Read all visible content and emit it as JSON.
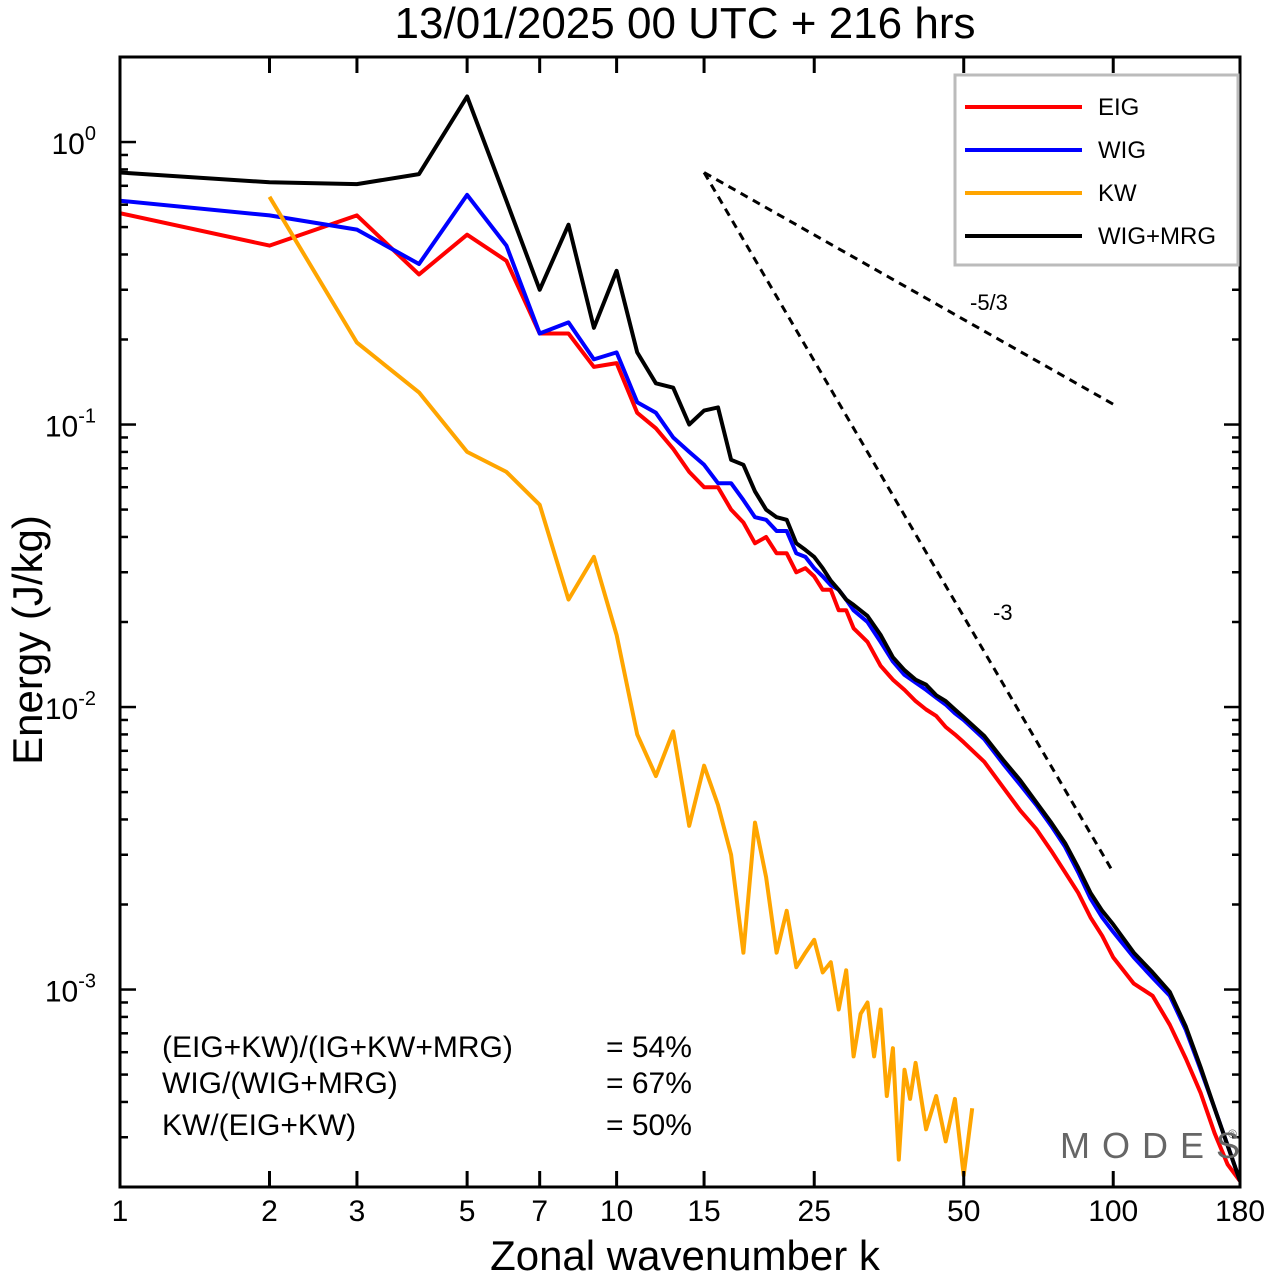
{
  "chart_data": {
    "type": "line",
    "title": "13/01/2025  00 UTC  + 216 hrs",
    "xlabel": "Zonal wavenumber k",
    "ylabel": "Energy (J/kg)",
    "x_scale": "log",
    "y_scale": "log",
    "xlim": [
      1,
      180
    ],
    "ylim": [
      0.0002,
      2.0
    ],
    "x_ticks": [
      1,
      2,
      3,
      5,
      7,
      10,
      15,
      25,
      50,
      100,
      180
    ],
    "x_tick_labels": [
      "1",
      "2",
      "3",
      "5",
      "7",
      "10",
      "15",
      "25",
      "50",
      "100",
      "180"
    ],
    "y_ticks": [
      0.001,
      0.01,
      0.1,
      1
    ],
    "y_tick_labels": [
      {
        "base": "10",
        "exp": "-3"
      },
      {
        "base": "10",
        "exp": "-2"
      },
      {
        "base": "10",
        "exp": "-1"
      },
      {
        "base": "10",
        "exp": "0"
      }
    ],
    "legend_position": "top-right",
    "grid": false,
    "series": [
      {
        "name": "EIG",
        "color": "#ff0000",
        "x": [
          1,
          2,
          3,
          4,
          5,
          6,
          7,
          8,
          9,
          10,
          11,
          12,
          13,
          14,
          15,
          16,
          17,
          18,
          19,
          20,
          21,
          22,
          23,
          24,
          25,
          26,
          27,
          28,
          29,
          30,
          32,
          34,
          36,
          38,
          40,
          42,
          44,
          46,
          48,
          50,
          55,
          60,
          65,
          70,
          75,
          80,
          85,
          90,
          95,
          100,
          110,
          120,
          130,
          140,
          150,
          160,
          170,
          180
        ],
        "values": [
          0.56,
          0.43,
          0.55,
          0.34,
          0.47,
          0.38,
          0.21,
          0.21,
          0.16,
          0.165,
          0.11,
          0.097,
          0.082,
          0.068,
          0.06,
          0.06,
          0.05,
          0.045,
          0.038,
          0.04,
          0.035,
          0.035,
          0.03,
          0.031,
          0.029,
          0.026,
          0.026,
          0.022,
          0.022,
          0.019,
          0.017,
          0.014,
          0.0125,
          0.0115,
          0.0105,
          0.0098,
          0.0093,
          0.0085,
          0.008,
          0.0075,
          0.0064,
          0.0052,
          0.0043,
          0.0037,
          0.0031,
          0.0026,
          0.0022,
          0.0018,
          0.00155,
          0.0013,
          0.00105,
          0.00095,
          0.00075,
          0.00057,
          0.00043,
          0.00031,
          0.00024,
          0.00021
        ]
      },
      {
        "name": "WIG",
        "color": "#0000ff",
        "x": [
          1,
          2,
          3,
          4,
          5,
          6,
          7,
          8,
          9,
          10,
          11,
          12,
          13,
          14,
          15,
          16,
          17,
          18,
          19,
          20,
          21,
          22,
          23,
          24,
          25,
          26,
          27,
          28,
          29,
          30,
          32,
          34,
          36,
          38,
          40,
          42,
          44,
          46,
          48,
          50,
          55,
          60,
          65,
          70,
          75,
          80,
          85,
          90,
          95,
          100,
          110,
          120,
          130,
          140,
          150,
          160,
          170,
          180
        ],
        "values": [
          0.62,
          0.55,
          0.49,
          0.37,
          0.65,
          0.43,
          0.21,
          0.23,
          0.17,
          0.18,
          0.12,
          0.11,
          0.09,
          0.08,
          0.072,
          0.062,
          0.062,
          0.054,
          0.047,
          0.046,
          0.042,
          0.042,
          0.035,
          0.034,
          0.031,
          0.029,
          0.027,
          0.026,
          0.024,
          0.022,
          0.02,
          0.017,
          0.0145,
          0.013,
          0.0122,
          0.0115,
          0.0108,
          0.0102,
          0.0095,
          0.009,
          0.0077,
          0.0063,
          0.0053,
          0.0045,
          0.0038,
          0.0032,
          0.0026,
          0.0021,
          0.0018,
          0.0016,
          0.0013,
          0.0011,
          0.00095,
          0.00072,
          0.00052,
          0.00038,
          0.00028,
          0.00021
        ]
      },
      {
        "name": "KW",
        "color": "#ffa500",
        "x": [
          2,
          3,
          4,
          5,
          6,
          7,
          8,
          9,
          10,
          11,
          12,
          13,
          14,
          15,
          16,
          17,
          18,
          19,
          20,
          21,
          22,
          23,
          24,
          25,
          26,
          27,
          28,
          29,
          30,
          31,
          32,
          33,
          34,
          35,
          36,
          37,
          38,
          39,
          40,
          42,
          44,
          46,
          48,
          50,
          52
        ],
        "values": [
          0.64,
          0.195,
          0.13,
          0.08,
          0.068,
          0.052,
          0.024,
          0.034,
          0.018,
          0.008,
          0.0057,
          0.0082,
          0.0038,
          0.0062,
          0.0045,
          0.003,
          0.00135,
          0.0039,
          0.0025,
          0.00135,
          0.0019,
          0.0012,
          0.00135,
          0.0015,
          0.00115,
          0.00125,
          0.00085,
          0.00117,
          0.00058,
          0.00082,
          0.0009,
          0.00058,
          0.00085,
          0.00042,
          0.00062,
          0.00025,
          0.00052,
          0.00041,
          0.00055,
          0.00032,
          0.00042,
          0.00029,
          0.00041,
          0.00022,
          0.00038
        ]
      },
      {
        "name": "WIG+MRG",
        "color": "#000000",
        "x": [
          1,
          2,
          3,
          4,
          5,
          6,
          7,
          8,
          9,
          10,
          11,
          12,
          13,
          14,
          15,
          16,
          17,
          18,
          19,
          20,
          21,
          22,
          23,
          24,
          25,
          26,
          27,
          28,
          29,
          30,
          32,
          34,
          36,
          38,
          40,
          42,
          44,
          46,
          48,
          50,
          55,
          60,
          65,
          70,
          75,
          80,
          85,
          90,
          95,
          100,
          110,
          120,
          130,
          140,
          150,
          160,
          170,
          180
        ],
        "values": [
          0.78,
          0.72,
          0.71,
          0.77,
          1.45,
          0.62,
          0.3,
          0.51,
          0.22,
          0.35,
          0.18,
          0.14,
          0.135,
          0.1,
          0.112,
          0.115,
          0.075,
          0.072,
          0.058,
          0.05,
          0.047,
          0.046,
          0.038,
          0.036,
          0.034,
          0.031,
          0.028,
          0.026,
          0.024,
          0.023,
          0.021,
          0.018,
          0.015,
          0.0135,
          0.0125,
          0.012,
          0.011,
          0.0105,
          0.0098,
          0.0092,
          0.0079,
          0.0065,
          0.0055,
          0.0046,
          0.0039,
          0.0033,
          0.0027,
          0.0022,
          0.0019,
          0.0017,
          0.00135,
          0.00115,
          0.00098,
          0.00074,
          0.00053,
          0.00038,
          0.00028,
          0.00021
        ]
      }
    ],
    "reference_lines": [
      {
        "label": "-5/3",
        "x": [
          15,
          100
        ],
        "values": [
          0.78,
          0.118
        ]
      },
      {
        "label": "-3",
        "x": [
          15,
          100
        ],
        "values": [
          0.78,
          0.0026
        ]
      }
    ]
  },
  "stats": [
    {
      "label": "(EIG+KW)/(IG+KW+MRG)",
      "value": "= 54%"
    },
    {
      "label": "WIG/(WIG+MRG)",
      "value": "= 67%"
    },
    {
      "label": "KW/(EIG+KW)",
      "value": "= 50%"
    }
  ],
  "brand": "MODES",
  "brand_mark": "©"
}
